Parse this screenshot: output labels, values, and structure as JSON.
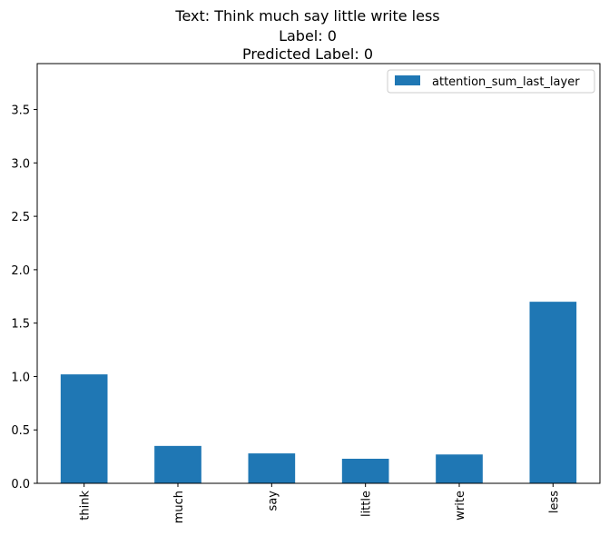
{
  "chart_data": {
    "type": "bar",
    "title_lines": [
      "Text: Think much say little write less",
      "Label: 0",
      "Predicted Label: 0"
    ],
    "categories": [
      "think",
      "much",
      "say",
      "little",
      "write",
      "less"
    ],
    "series": [
      {
        "name": "attention_sum_last_layer",
        "values": [
          1.02,
          0.35,
          0.28,
          0.23,
          0.27,
          1.7
        ]
      }
    ],
    "xlabel": "",
    "ylabel": "",
    "ylim": [
      0,
      3.93
    ],
    "yticks": [
      0.0,
      0.5,
      1.0,
      1.5,
      2.0,
      2.5,
      3.0,
      3.5
    ],
    "ytick_labels": [
      "0.0",
      "0.5",
      "1.0",
      "1.5",
      "2.0",
      "2.5",
      "3.0",
      "3.5"
    ],
    "grid": false,
    "legend_position": "top-right",
    "bar_color": "#1f77b4"
  }
}
